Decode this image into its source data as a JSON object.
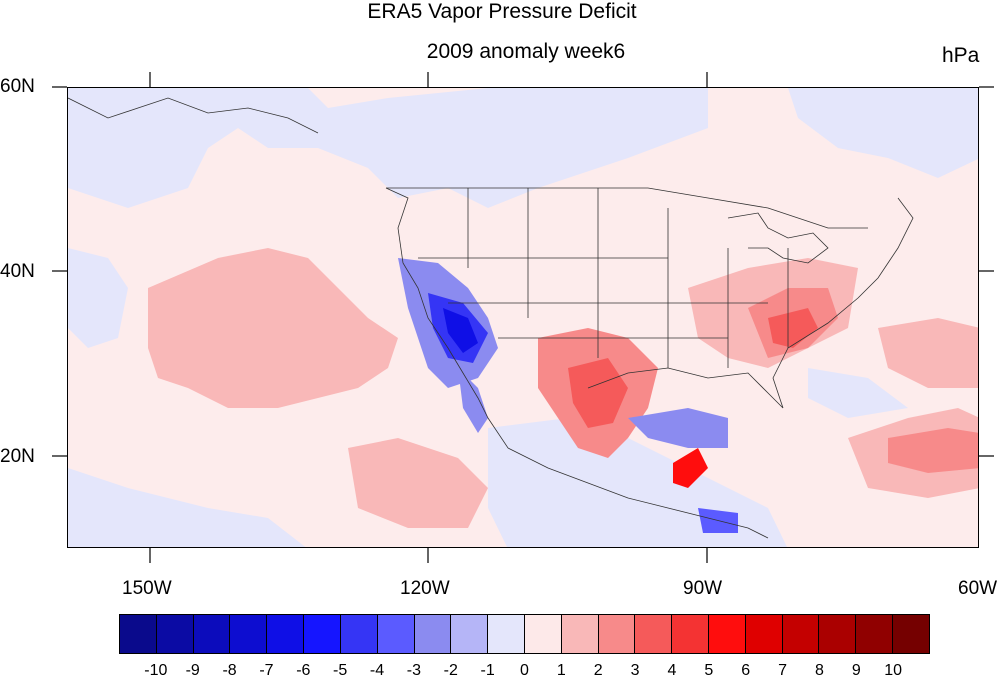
{
  "title": "ERA5 Vapor Pressure Deficit",
  "subtitle": "2009 anomaly week6",
  "units": "hPa",
  "axes": {
    "lat_labels": [
      "60N",
      "40N",
      "20N"
    ],
    "lon_labels": [
      "150W",
      "120W",
      "90W",
      "60W"
    ]
  },
  "colorbar": {
    "labels": [
      "-10",
      "-9",
      "-8",
      "-7",
      "-6",
      "-5",
      "-4",
      "-3",
      "-2",
      "-1",
      "0",
      "1",
      "2",
      "3",
      "4",
      "5",
      "6",
      "7",
      "8",
      "9",
      "10"
    ],
    "colors": [
      "#0a0a8c",
      "#0b0ba4",
      "#0c0cbc",
      "#0d0dd0",
      "#0f0fe6",
      "#1515ff",
      "#3535f5",
      "#5b5bff",
      "#8b8bf0",
      "#b5b5f7",
      "#e4e6fb",
      "#fde9e9",
      "#f9b8b8",
      "#f78a8a",
      "#f55a5a",
      "#f43333",
      "#ff0d0d",
      "#df0000",
      "#c40000",
      "#aa0000",
      "#900000",
      "#750000"
    ]
  },
  "map": {
    "region": "North America and adjacent oceans",
    "lat_range": [
      10,
      60
    ],
    "lon_range": [
      -160,
      -60
    ],
    "background_color": "#fdecec"
  }
}
